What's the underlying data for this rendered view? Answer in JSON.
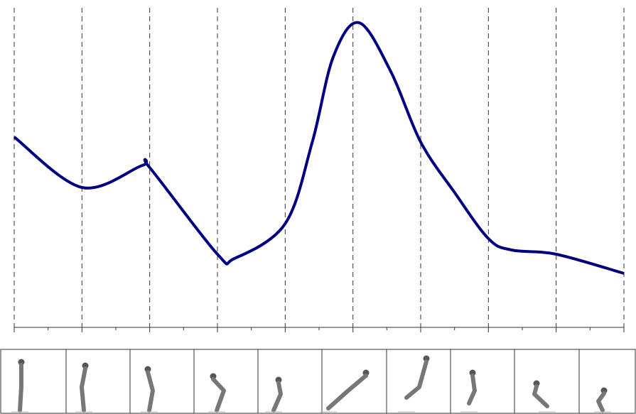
{
  "chart_data": {
    "type": "line",
    "x": [
      0,
      1,
      1.89,
      2,
      3,
      3.25,
      4,
      4.4,
      4.71,
      5.09,
      5.56,
      6,
      6.5,
      7,
      7.34,
      8,
      9
    ],
    "series": [
      {
        "color": "#000080",
        "values": [
          268,
          197,
          228,
          225,
          103,
          97,
          146,
          261,
          381,
          429,
          360,
          261,
          190,
          125,
          109,
          103,
          76
        ]
      }
    ],
    "xlim": [
      0,
      9
    ],
    "xticks": [
      0,
      1,
      2,
      3,
      4,
      5,
      6,
      7,
      8,
      9
    ],
    "ylim": [
      0,
      450
    ],
    "grid": true
  }
}
